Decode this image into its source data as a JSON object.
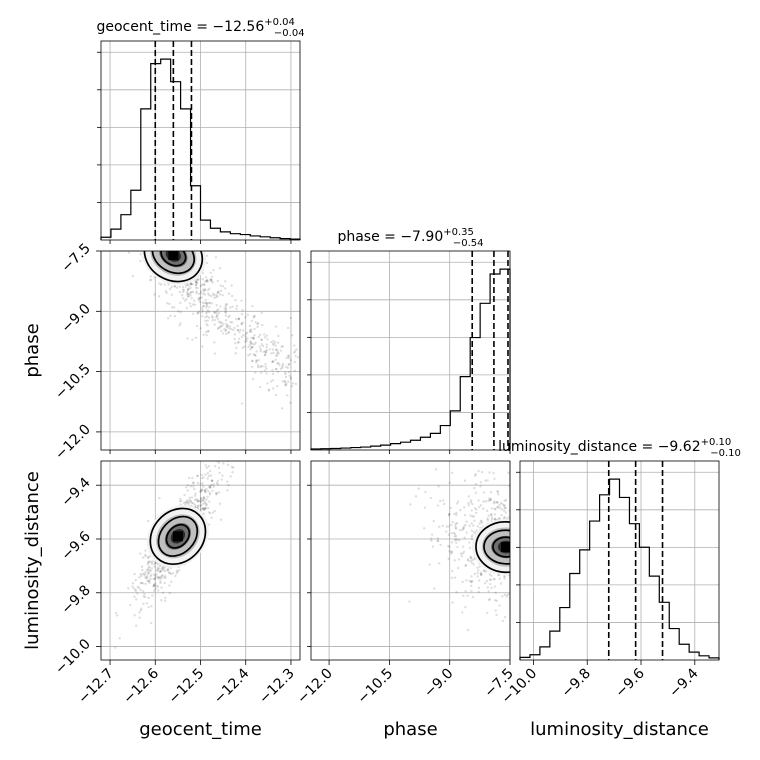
{
  "chart_data": {
    "type": "corner",
    "parameters": [
      {
        "name": "geocent_time",
        "label": "geocent_time",
        "range": [
          -12.72,
          -12.28
        ],
        "ticks": [
          -12.7,
          -12.6,
          -12.5,
          -12.4,
          -12.3
        ],
        "tick_labels": [
          "−12.7",
          "−12.6",
          "−12.5",
          "−12.4",
          "−12.3"
        ],
        "title_main": "geocent_time = −12.56",
        "title_plus": "+0.04",
        "title_minus": "−0.04",
        "quantiles": [
          -12.6,
          -12.56,
          -12.52
        ],
        "hist_density": [
          0.3,
          1.2,
          2.8,
          5.5,
          14.5,
          19.5,
          20,
          17.5,
          14.5,
          6.0,
          2.2,
          1.3,
          0.9,
          0.7,
          0.6,
          0.45,
          0.35,
          0.25,
          0.15,
          0.1
        ]
      },
      {
        "name": "phase",
        "label": "phase",
        "range": [
          -12.45,
          -7.5
        ],
        "ticks": [
          -12.0,
          -10.5,
          -9.0,
          -7.5
        ],
        "tick_labels": [
          "−12.0",
          "−10.5",
          "−9.0",
          "−7.5"
        ],
        "title_main": "phase = −7.90",
        "title_plus": "+0.35",
        "title_minus": "−0.54",
        "quantiles": [
          -8.44,
          -7.9,
          -7.55
        ],
        "hist_density": [
          0.2,
          0.25,
          0.3,
          0.4,
          0.5,
          0.6,
          0.8,
          1.0,
          1.3,
          1.6,
          2.0,
          2.6,
          3.4,
          5.0,
          8.0,
          15.0,
          23.0,
          30.0,
          36.0,
          37.0
        ]
      },
      {
        "name": "luminosity_distance",
        "label": "luminosity_distance",
        "range": [
          -10.05,
          -9.31
        ],
        "ticks": [
          -10.0,
          -9.8,
          -9.6,
          -9.4
        ],
        "tick_labels": [
          "−10.0",
          "−9.8",
          "−9.6",
          "−9.4"
        ],
        "title_main": "luminosity_distance = −9.62",
        "title_plus": "+0.10",
        "title_minus": "−0.10",
        "quantiles": [
          -9.72,
          -9.62,
          -9.52
        ],
        "hist_density": [
          0.5,
          1.0,
          2.5,
          5.5,
          10,
          16.5,
          21,
          26.5,
          31.5,
          34.5,
          31,
          26,
          21.5,
          16,
          11,
          6,
          3,
          1.5,
          0.8,
          0.4
        ]
      }
    ],
    "panels_2d": [
      {
        "x": "geocent_time",
        "y": "phase",
        "mode": {
          "x": -12.56,
          "y": -7.6
        }
      },
      {
        "x": "geocent_time",
        "y": "luminosity_distance",
        "mode": {
          "x": -12.55,
          "y": -9.59
        }
      },
      {
        "x": "phase",
        "y": "luminosity_distance",
        "mode": {
          "x": -7.6,
          "y": -9.63
        }
      }
    ],
    "grid": true
  }
}
